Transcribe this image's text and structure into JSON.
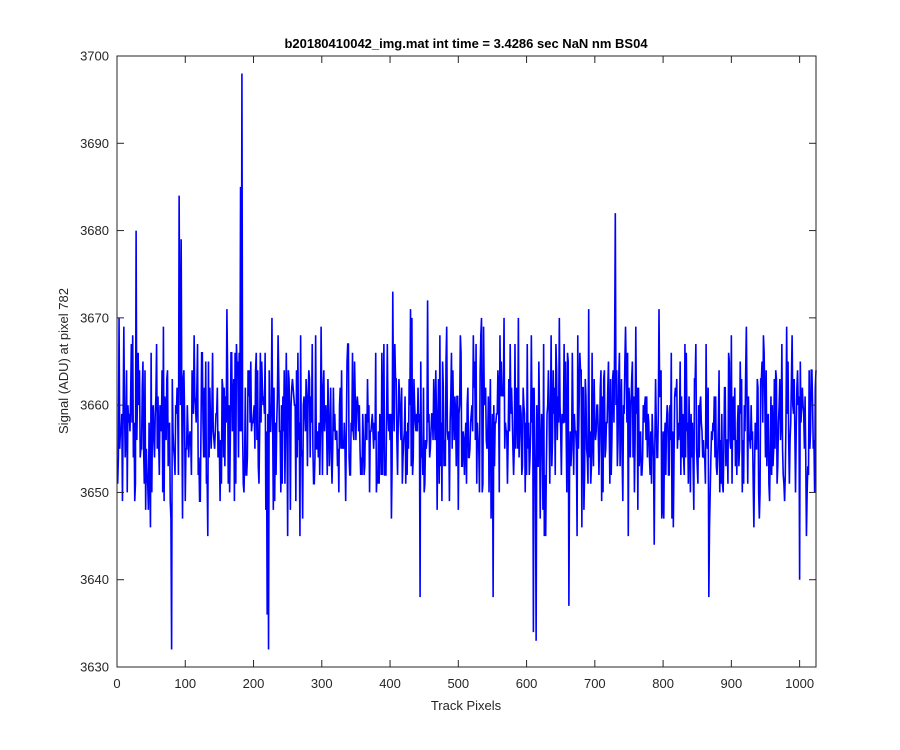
{
  "chart_data": {
    "type": "line",
    "title": "b20180410042_img.mat int time = 3.4286 sec  NaN nm BS04",
    "xlabel": "Track Pixels",
    "ylabel": "Signal (ADU) at pixel 782",
    "xlim": [
      0,
      1024
    ],
    "ylim": [
      3630,
      3700
    ],
    "xticks": [
      0,
      100,
      200,
      300,
      400,
      500,
      600,
      700,
      800,
      900,
      1000
    ],
    "yticks": [
      3630,
      3640,
      3650,
      3660,
      3670,
      3680,
      3690,
      3700
    ],
    "grid": false,
    "line_color": "#0000ff",
    "series": [
      {
        "name": "",
        "x_start": 1,
        "x_step": 1,
        "count": 1024,
        "mean": 3658,
        "notable_points": [
          {
            "x": 3,
            "y": 3670
          },
          {
            "x": 28,
            "y": 3680
          },
          {
            "x": 80,
            "y": 3632
          },
          {
            "x": 91,
            "y": 3684
          },
          {
            "x": 94,
            "y": 3679
          },
          {
            "x": 181,
            "y": 3685
          },
          {
            "x": 183,
            "y": 3698
          },
          {
            "x": 220,
            "y": 3636
          },
          {
            "x": 222,
            "y": 3632
          },
          {
            "x": 444,
            "y": 3638
          },
          {
            "x": 551,
            "y": 3638
          },
          {
            "x": 610,
            "y": 3634
          },
          {
            "x": 614,
            "y": 3633
          },
          {
            "x": 662,
            "y": 3637
          },
          {
            "x": 730,
            "y": 3682
          },
          {
            "x": 867,
            "y": 3638
          },
          {
            "x": 1000,
            "y": 3640
          }
        ]
      }
    ]
  }
}
